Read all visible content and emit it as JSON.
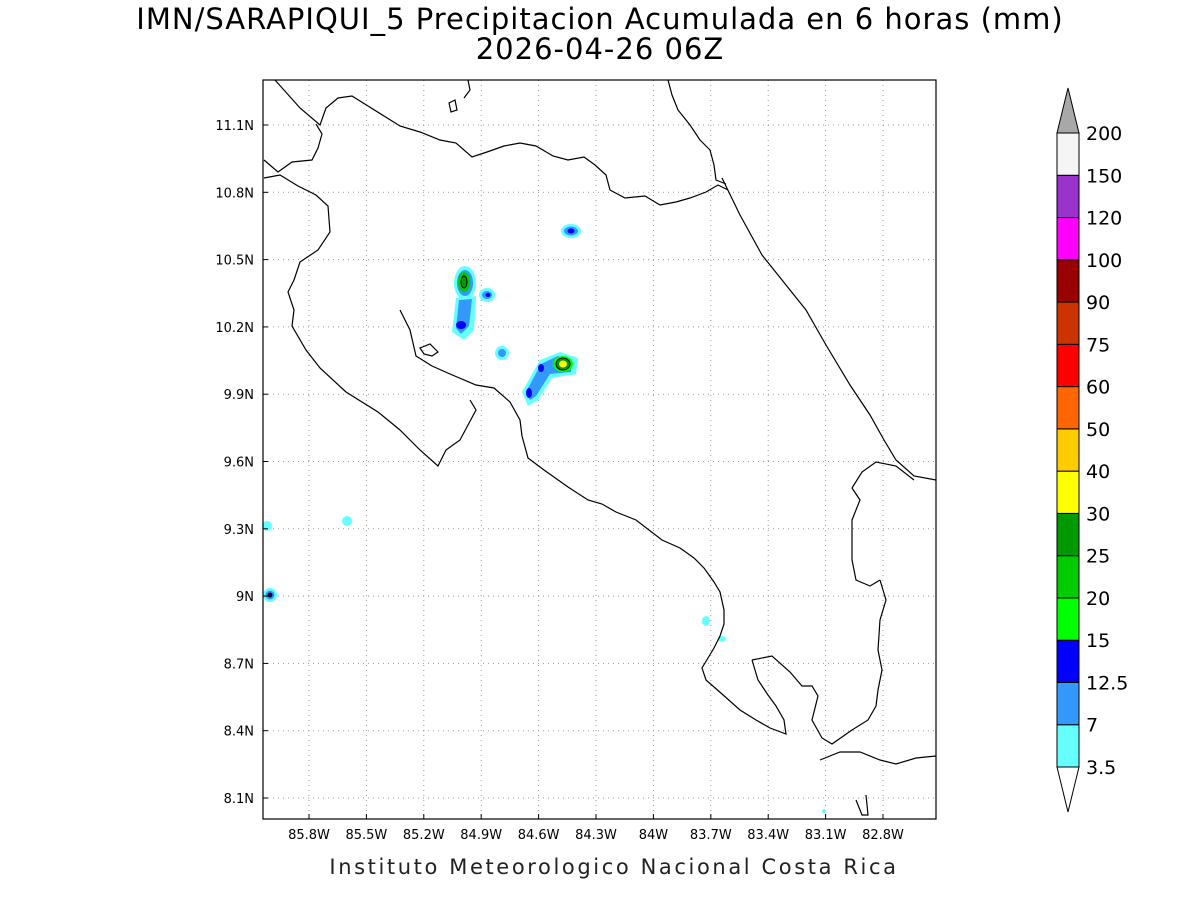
{
  "title": {
    "line1": "IMN/SARAPIQUI_5 Precipitacion Acumulada en 6 horas (mm)",
    "line2": "2026-04-26 06Z"
  },
  "footer": "Instituto Meteorologico Nacional Costa Rica",
  "map": {
    "lon_range": [
      -86.0,
      -82.5
    ],
    "lat_range": [
      8.0,
      11.3
    ],
    "lon_ticks": [
      "85.8W",
      "85.5W",
      "85.2W",
      "84.9W",
      "84.6W",
      "84.3W",
      "84W",
      "83.7W",
      "83.4W",
      "83.1W",
      "82.8W"
    ],
    "lat_ticks": [
      "8.1N",
      "8.4N",
      "8.7N",
      "9N",
      "9.3N",
      "9.6N",
      "9.9N",
      "10.2N",
      "10.5N",
      "10.8N",
      "11.1N"
    ],
    "grid": "dotted",
    "coastline_color": "#000000"
  },
  "colorbar": {
    "levels": [
      "3.5",
      "7",
      "12.5",
      "15",
      "20",
      "25",
      "30",
      "40",
      "50",
      "60",
      "75",
      "90",
      "100",
      "120",
      "150",
      "200"
    ],
    "colors": [
      "#66ffff",
      "#3399ff",
      "#0000ff",
      "#00ff00",
      "#00cc00",
      "#009900",
      "#ffff00",
      "#ffcc00",
      "#ff6600",
      "#ff0000",
      "#cc3300",
      "#990000",
      "#ff00ff",
      "#9933cc",
      "#f5f5f5",
      "#a8a8a8"
    ]
  }
}
